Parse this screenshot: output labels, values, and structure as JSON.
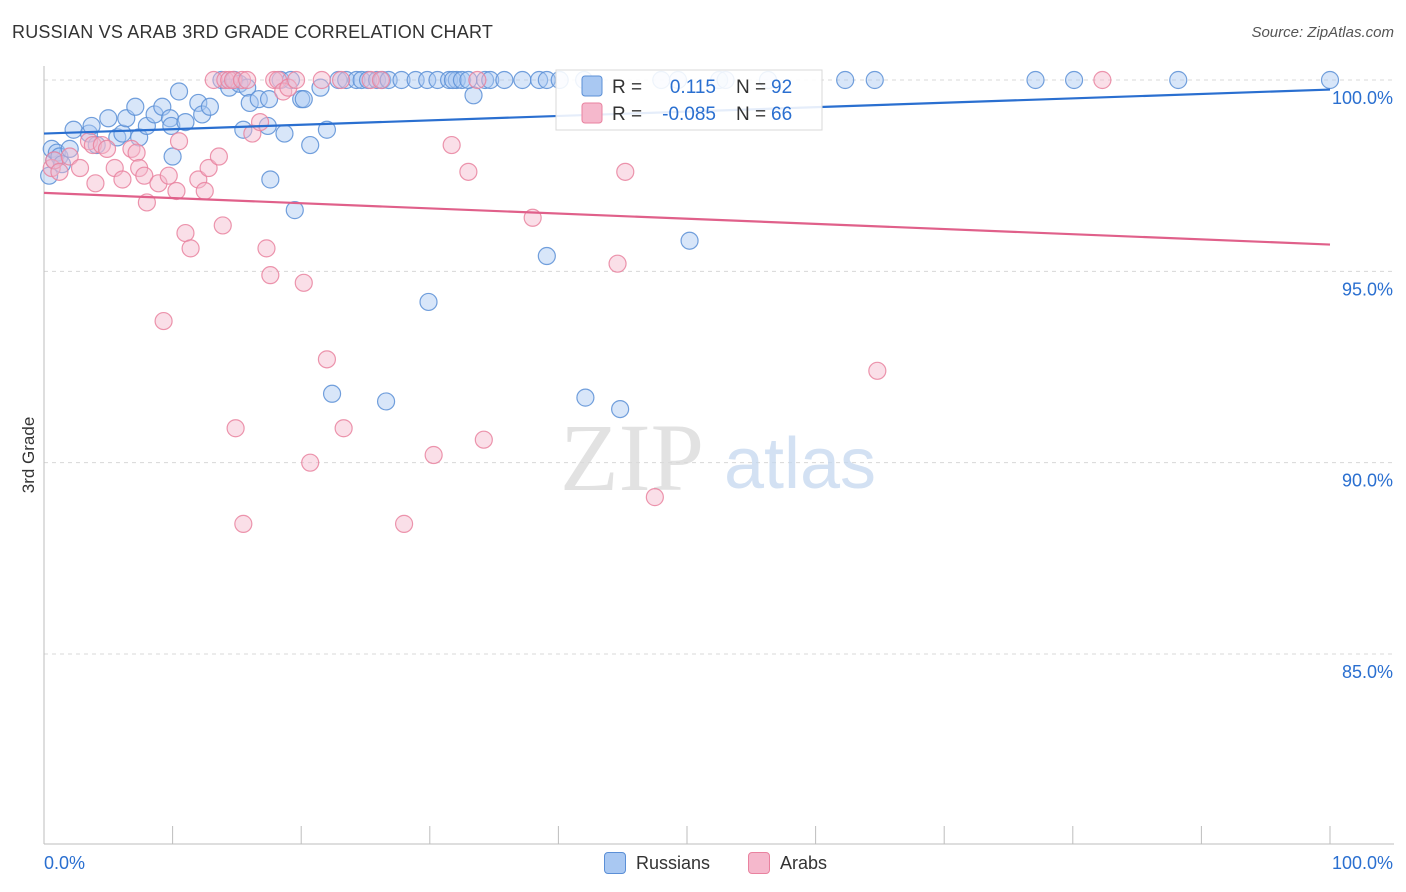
{
  "title": "RUSSIAN VS ARAB 3RD GRADE CORRELATION CHART",
  "source": "Source: ZipAtlas.com",
  "watermark": {
    "zip": "ZIP",
    "atlas": "atlas"
  },
  "colors": {
    "blue_fill": "#a9c8f2",
    "blue_stroke": "#5b8fd6",
    "blue_line": "#2a6fd0",
    "pink_fill": "#f5b8cc",
    "pink_stroke": "#e9829f",
    "pink_line": "#e0608a",
    "value_text": "#2a6fd0",
    "grid": "#d8d8d8"
  },
  "legend_top": {
    "rows": [
      {
        "r_label": "R =",
        "r_value": "0.115",
        "n_label": "N =",
        "n_value": "92",
        "series": "Russians"
      },
      {
        "r_label": "R =",
        "r_value": "-0.085",
        "n_label": "N =",
        "n_value": "66",
        "series": "Arabs"
      }
    ]
  },
  "legend_bottom": [
    {
      "label": "Russians",
      "series": "Russians"
    },
    {
      "label": "Arabs",
      "series": "Arabs"
    }
  ],
  "chart_data": {
    "type": "scatter",
    "title": "RUSSIAN VS ARAB 3RD GRADE CORRELATION CHART",
    "xlabel": "",
    "ylabel": "3rd Grade",
    "xlim": [
      0,
      100
    ],
    "ylim": [
      80.5,
      100.4
    ],
    "x_tick_labels": [
      {
        "value": 0,
        "label": "0.0%"
      },
      {
        "value": 100,
        "label": "100.0%"
      }
    ],
    "y_tick_labels": [
      {
        "value": 100,
        "label": "100.0%"
      },
      {
        "value": 95,
        "label": "95.0%"
      },
      {
        "value": 90,
        "label": "90.0%"
      },
      {
        "value": 85,
        "label": "85.0%"
      }
    ],
    "grid": true,
    "series": [
      {
        "name": "Russians",
        "r": 0.115,
        "n": 92,
        "trend": {
          "x": [
            0,
            100
          ],
          "y": [
            98.6,
            99.75
          ]
        },
        "points": [
          [
            0.4,
            97.5
          ],
          [
            0.6,
            98.2
          ],
          [
            0.8,
            97.9
          ],
          [
            1.0,
            98.1
          ],
          [
            1.2,
            98.0
          ],
          [
            1.4,
            97.8
          ],
          [
            2.0,
            98.2
          ],
          [
            2.3,
            98.7
          ],
          [
            3.5,
            98.6
          ],
          [
            3.7,
            98.8
          ],
          [
            4.1,
            98.3
          ],
          [
            5.0,
            99.0
          ],
          [
            5.7,
            98.5
          ],
          [
            6.1,
            98.6
          ],
          [
            6.4,
            99.0
          ],
          [
            7.1,
            99.3
          ],
          [
            7.4,
            98.5
          ],
          [
            8.0,
            98.8
          ],
          [
            8.6,
            99.1
          ],
          [
            9.2,
            99.3
          ],
          [
            9.8,
            99.0
          ],
          [
            9.9,
            98.8
          ],
          [
            10.0,
            98.0
          ],
          [
            10.5,
            99.7
          ],
          [
            11.0,
            98.9
          ],
          [
            12.0,
            99.4
          ],
          [
            12.3,
            99.1
          ],
          [
            12.9,
            99.3
          ],
          [
            13.8,
            100.0
          ],
          [
            14.4,
            99.8
          ],
          [
            14.8,
            100.0
          ],
          [
            15.2,
            99.9
          ],
          [
            15.5,
            98.7
          ],
          [
            15.8,
            99.8
          ],
          [
            16.0,
            99.4
          ],
          [
            16.7,
            99.5
          ],
          [
            17.4,
            98.8
          ],
          [
            17.5,
            99.5
          ],
          [
            17.6,
            97.4
          ],
          [
            18.4,
            100.0
          ],
          [
            18.7,
            98.6
          ],
          [
            19.2,
            100.0
          ],
          [
            19.5,
            96.6
          ],
          [
            20.0,
            99.5
          ],
          [
            20.2,
            99.5
          ],
          [
            20.7,
            98.3
          ],
          [
            21.5,
            99.8
          ],
          [
            22.0,
            98.7
          ],
          [
            22.4,
            91.8
          ],
          [
            22.9,
            100.0
          ],
          [
            23.5,
            100.0
          ],
          [
            24.3,
            100.0
          ],
          [
            24.7,
            100.0
          ],
          [
            25.2,
            100.0
          ],
          [
            25.9,
            100.0
          ],
          [
            26.3,
            100.0
          ],
          [
            26.8,
            100.0
          ],
          [
            26.6,
            91.6
          ],
          [
            27.8,
            100.0
          ],
          [
            28.9,
            100.0
          ],
          [
            29.8,
            100.0
          ],
          [
            29.9,
            94.2
          ],
          [
            30.6,
            100.0
          ],
          [
            31.5,
            100.0
          ],
          [
            32.1,
            100.0
          ],
          [
            31.8,
            100.0
          ],
          [
            32.5,
            100.0
          ],
          [
            33.4,
            99.6
          ],
          [
            33.0,
            100.0
          ],
          [
            34.3,
            100.0
          ],
          [
            34.7,
            100.0
          ],
          [
            35.8,
            100.0
          ],
          [
            37.2,
            100.0
          ],
          [
            38.5,
            100.0
          ],
          [
            39.1,
            100.0
          ],
          [
            40.1,
            100.0
          ],
          [
            39.1,
            95.4
          ],
          [
            42.0,
            100.0
          ],
          [
            42.1,
            91.7
          ],
          [
            44.8,
            91.4
          ],
          [
            48.0,
            100.0
          ],
          [
            49.3,
            100.0
          ],
          [
            50.2,
            95.8
          ],
          [
            52.5,
            100.0
          ],
          [
            53.0,
            100.0
          ],
          [
            56.3,
            100.0
          ],
          [
            62.3,
            100.0
          ],
          [
            64.6,
            100.0
          ],
          [
            77.1,
            100.0
          ],
          [
            80.1,
            100.0
          ],
          [
            88.2,
            100.0
          ],
          [
            100.0,
            100.0
          ]
        ]
      },
      {
        "name": "Arabs",
        "r": -0.085,
        "n": 66,
        "trend": {
          "x": [
            0,
            100
          ],
          "y": [
            97.05,
            95.7
          ]
        },
        "points": [
          [
            0.6,
            97.7
          ],
          [
            0.8,
            97.9
          ],
          [
            1.2,
            97.6
          ],
          [
            2.0,
            98.0
          ],
          [
            2.8,
            97.7
          ],
          [
            3.5,
            98.4
          ],
          [
            3.8,
            98.3
          ],
          [
            4.0,
            97.3
          ],
          [
            4.5,
            98.3
          ],
          [
            4.9,
            98.2
          ],
          [
            5.5,
            97.7
          ],
          [
            6.1,
            97.4
          ],
          [
            6.8,
            98.2
          ],
          [
            7.2,
            98.1
          ],
          [
            7.4,
            97.7
          ],
          [
            7.8,
            97.5
          ],
          [
            8.0,
            96.8
          ],
          [
            8.9,
            97.3
          ],
          [
            9.3,
            93.7
          ],
          [
            9.7,
            97.5
          ],
          [
            10.3,
            97.1
          ],
          [
            10.5,
            98.4
          ],
          [
            11.0,
            96.0
          ],
          [
            11.4,
            95.6
          ],
          [
            12.0,
            97.4
          ],
          [
            12.5,
            97.1
          ],
          [
            12.8,
            97.7
          ],
          [
            13.2,
            100.0
          ],
          [
            13.6,
            98.0
          ],
          [
            13.9,
            96.2
          ],
          [
            14.1,
            100.0
          ],
          [
            14.4,
            100.0
          ],
          [
            14.7,
            100.0
          ],
          [
            14.9,
            90.9
          ],
          [
            15.4,
            100.0
          ],
          [
            15.5,
            88.4
          ],
          [
            15.8,
            100.0
          ],
          [
            16.2,
            98.6
          ],
          [
            16.8,
            98.9
          ],
          [
            17.3,
            95.6
          ],
          [
            17.6,
            94.9
          ],
          [
            17.9,
            100.0
          ],
          [
            18.2,
            100.0
          ],
          [
            18.6,
            99.7
          ],
          [
            19.0,
            99.8
          ],
          [
            19.6,
            100.0
          ],
          [
            20.2,
            94.7
          ],
          [
            20.7,
            90.0
          ],
          [
            21.6,
            100.0
          ],
          [
            22.0,
            92.7
          ],
          [
            23.1,
            100.0
          ],
          [
            23.3,
            90.9
          ],
          [
            25.4,
            100.0
          ],
          [
            26.2,
            100.0
          ],
          [
            28.0,
            88.4
          ],
          [
            30.3,
            90.2
          ],
          [
            31.7,
            98.3
          ],
          [
            33.0,
            97.6
          ],
          [
            33.7,
            100.0
          ],
          [
            34.2,
            90.6
          ],
          [
            38.0,
            96.4
          ],
          [
            44.6,
            95.2
          ],
          [
            45.2,
            97.6
          ],
          [
            47.5,
            89.1
          ],
          [
            64.8,
            92.4
          ],
          [
            82.3,
            100.0
          ]
        ]
      }
    ]
  }
}
